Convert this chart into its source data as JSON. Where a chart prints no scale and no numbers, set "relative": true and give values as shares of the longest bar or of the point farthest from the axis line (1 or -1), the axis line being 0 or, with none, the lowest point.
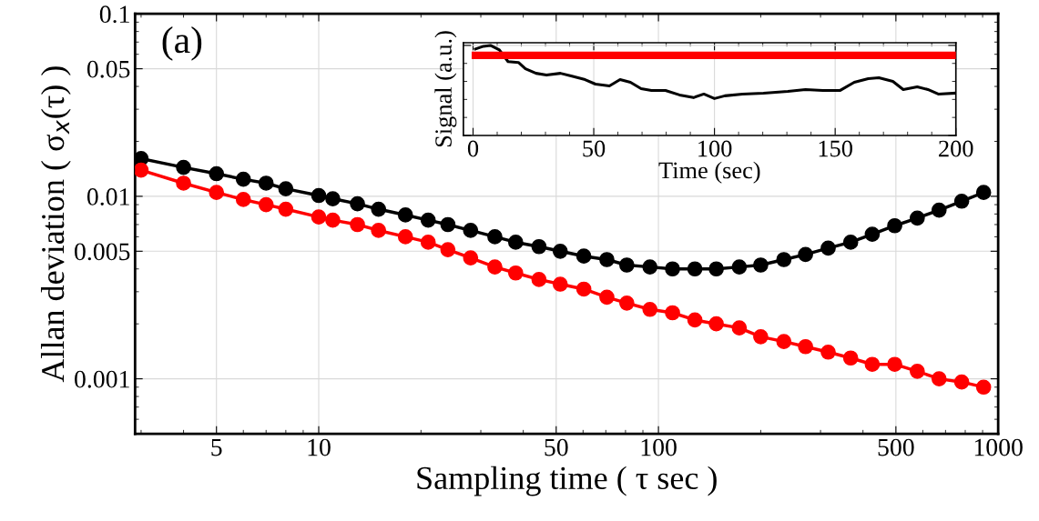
{
  "chart_data": [
    {
      "type": "line",
      "xlabel": "Sampling time ( τ sec )",
      "ylabel": "Allan deviation ( σ$_{x}$(τ) )",
      "annotations": [
        "(a)"
      ],
      "log": "xy",
      "grid": true,
      "marker": "circle",
      "line_style": "solid",
      "xlim": [
        2.88,
        1000
      ],
      "xticks": [
        5,
        10,
        50,
        100,
        500,
        1000
      ],
      "ylim": [
        0.0005,
        0.1
      ],
      "yticks": [
        0.001,
        0.005,
        0.01,
        0.05,
        0.1
      ],
      "x": [
        3,
        4,
        5,
        6,
        7,
        8,
        10,
        11,
        13,
        15,
        18,
        21,
        24,
        28,
        33,
        38,
        44.5,
        51.4,
        60.3,
        70.5,
        80.7,
        94.4,
        110,
        128,
        148,
        173,
        200,
        234,
        271,
        316,
        368,
        426,
        496,
        578,
        670,
        781,
        906
      ],
      "series": [
        {
          "color": "#000000",
          "values": [
            0.0161,
            0.0144,
            0.0133,
            0.0124,
            0.0118,
            0.011,
            0.0101,
            0.0097,
            0.0091,
            0.0085,
            0.0079,
            0.0074,
            0.007,
            0.0065,
            0.006,
            0.0056,
            0.0053,
            0.005,
            0.0047,
            0.0045,
            0.0042,
            0.0041,
            0.004,
            0.004,
            0.004,
            0.0041,
            0.0042,
            0.0045,
            0.0048,
            0.0052,
            0.0056,
            0.0062,
            0.0069,
            0.0076,
            0.0084,
            0.0094,
            0.0105
          ]
        },
        {
          "color": "#ff0000",
          "values": [
            0.0139,
            0.0118,
            0.0105,
            0.0096,
            0.009,
            0.0085,
            0.0077,
            0.0074,
            0.007,
            0.0065,
            0.006,
            0.0056,
            0.0051,
            0.0046,
            0.0041,
            0.0038,
            0.0035,
            0.0033,
            0.0031,
            0.0028,
            0.0026,
            0.0024,
            0.0023,
            0.0021,
            0.002,
            0.0019,
            0.0017,
            0.0016,
            0.0015,
            0.0014,
            0.0013,
            0.0012,
            0.0012,
            0.0011,
            0.001,
            0.00096,
            0.0009
          ]
        }
      ]
    },
    {
      "type": "line",
      "xlabel": "Time (sec)",
      "ylabel": "Signal (a.u.)",
      "relative": true,
      "grid": true,
      "tick_labels": "x",
      "xlim": [
        -4,
        200
      ],
      "xticks": [
        0,
        50,
        100,
        150,
        200
      ],
      "series": [
        {
          "color": "#000000",
          "x": [
            1,
            4.3,
            7.2,
            10.9,
            14.5,
            18.8,
            21.7,
            26.1,
            30.4,
            36.2,
            40.6,
            46.4,
            50.7,
            56.5,
            60.9,
            65.2,
            69.6,
            73.9,
            79.7,
            85.5,
            91.3,
            95.6,
            100,
            104.3,
            111.6,
            120.3,
            130.4,
            137.7,
            144.9,
            152.1,
            157.9,
            163.7,
            168.1,
            173.9,
            178.2,
            184,
            188.4,
            192.7,
            200
          ],
          "values": [
            0.96,
            0.99,
            1,
            0.95,
            0.82,
            0.81,
            0.74,
            0.69,
            0.67,
            0.69,
            0.66,
            0.62,
            0.57,
            0.55,
            0.62,
            0.59,
            0.52,
            0.5,
            0.5,
            0.45,
            0.42,
            0.46,
            0.41,
            0.44,
            0.46,
            0.47,
            0.49,
            0.51,
            0.5,
            0.5,
            0.59,
            0.63,
            0.64,
            0.6,
            0.51,
            0.54,
            0.51,
            0.46,
            0.47
          ]
        },
        {
          "color": "#ff0000",
          "x": [
            1,
            200
          ],
          "values": [
            0.89,
            0.89
          ]
        }
      ]
    }
  ]
}
